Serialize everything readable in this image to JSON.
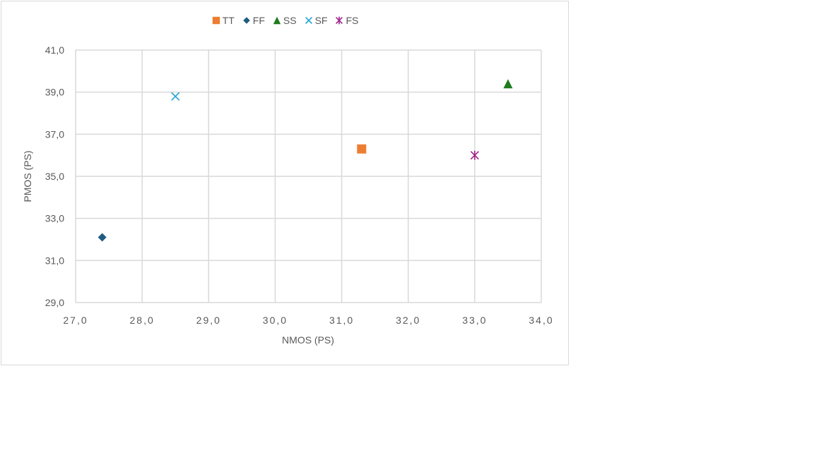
{
  "chart_data": {
    "type": "scatter",
    "xlabel": "NMOS (PS)",
    "ylabel": "PMOS (PS)",
    "xlim": [
      27.0,
      34.0
    ],
    "ylim": [
      29.0,
      41.0
    ],
    "x_ticks": [
      "27,0",
      "28,0",
      "29,0",
      "30,0",
      "31,0",
      "32,0",
      "33,0",
      "34,0"
    ],
    "y_ticks": [
      "29,0",
      "31,0",
      "33,0",
      "35,0",
      "37,0",
      "39,0",
      "41,0"
    ],
    "grid": true,
    "legend_position": "top-center",
    "series": [
      {
        "name": "TT",
        "marker": "square",
        "color": "#ED7D31",
        "points": [
          {
            "x": 31.3,
            "y": 36.3
          }
        ]
      },
      {
        "name": "FF",
        "marker": "diamond",
        "color": "#1F5C80",
        "points": [
          {
            "x": 27.4,
            "y": 32.1
          }
        ]
      },
      {
        "name": "SS",
        "marker": "triangle",
        "color": "#1E7B1E",
        "points": [
          {
            "x": 33.5,
            "y": 39.4
          }
        ]
      },
      {
        "name": "SF",
        "marker": "x",
        "color": "#1FA3D6",
        "points": [
          {
            "x": 28.5,
            "y": 38.8
          }
        ]
      },
      {
        "name": "FS",
        "marker": "asterisk",
        "color": "#A0228C",
        "points": [
          {
            "x": 33.0,
            "y": 36.0
          }
        ]
      }
    ]
  }
}
